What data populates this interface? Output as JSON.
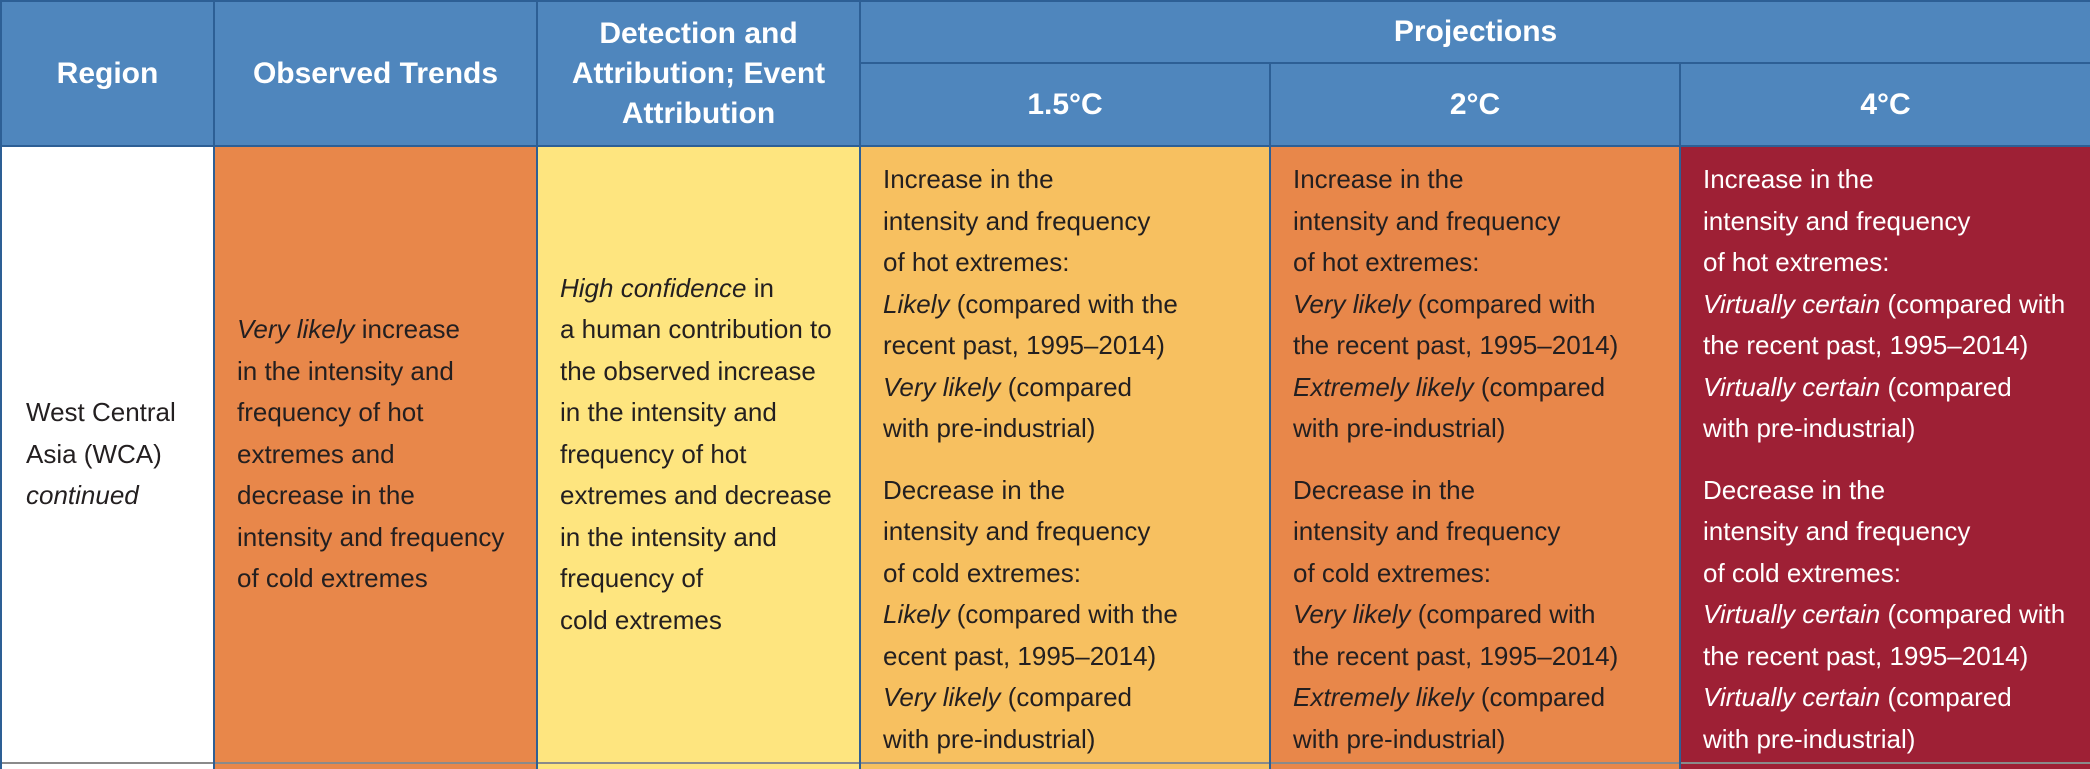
{
  "header": {
    "region": "Region",
    "observed": "Observed Trends",
    "detection": [
      "Detection and",
      "Attribution; Event",
      "Attribution"
    ],
    "projections": "Projections",
    "p15": "1.5°C",
    "p2": "2°C",
    "p4": "4°C"
  },
  "row": {
    "region": {
      "line1": "West Central",
      "line2": "Asia (WCA)",
      "line3": "continued"
    },
    "observed": {
      "l1_em": "Very likely",
      "l1_rest": " increase",
      "l2": "in the intensity and",
      "l3": "frequency of hot",
      "l4": "extremes and",
      "l5": "decrease in the",
      "l6": "intensity and frequency",
      "l7": "of cold extremes"
    },
    "detection": {
      "l1_em": "High confidence",
      "l1_rest": " in",
      "l2": "a human contribution to",
      "l3": "the observed increase",
      "l4": "in the intensity and",
      "l5": "frequency of hot",
      "l6": "extremes and decrease",
      "l7": "in the intensity and",
      "l8": "frequency of",
      "l9": "cold extremes"
    },
    "p15": {
      "h1": "Increase in the",
      "h2": "intensity and frequency",
      "h3": "of hot extremes:",
      "h4_em": "Likely",
      "h4_rest": " (compared with the",
      "h5": "recent past, 1995–2014)",
      "h6_em": "Very likely",
      "h6_rest": " (compared",
      "h7": "with pre-industrial)",
      "c1": "Decrease in the",
      "c2": "intensity and frequency",
      "c3": "of cold extremes:",
      "c4_em": "Likely",
      "c4_rest": " (compared with the",
      "c5": "ecent past, 1995–2014)",
      "c6_em": "Very likely",
      "c6_rest": " (compared",
      "c7": "with pre-industrial)"
    },
    "p2": {
      "h1": "Increase in the",
      "h2": "intensity and frequency",
      "h3": "of hot extremes:",
      "h4_em": "Very likely",
      "h4_rest": " (compared with",
      "h5": "the recent past, 1995–2014)",
      "h6_em": "Extremely likely",
      "h6_rest": " (compared",
      "h7": "with pre-industrial)",
      "c1": "Decrease in the",
      "c2": "intensity and frequency",
      "c3": "of cold extremes:",
      "c4_em": "Very likely",
      "c4_rest": " (compared with",
      "c5": "the recent past, 1995–2014)",
      "c6_em": "Extremely likely",
      "c6_rest": " (compared",
      "c7": "with pre-industrial)"
    },
    "p4": {
      "h1": "Increase in the",
      "h2": "intensity and frequency",
      "h3": "of hot extremes:",
      "h4_em": "Virtually certain",
      "h4_rest": " (compared with",
      "h5": "the recent past, 1995–2014)",
      "h6_em": "Virtually certain",
      "h6_rest": " (compared",
      "h7": "with pre-industrial)",
      "c1": "Decrease in the",
      "c2": "intensity and frequency",
      "c3": "of cold extremes:",
      "c4_em": "Virtually certain",
      "c4_rest": " (compared with",
      "c5": "the recent past, 1995–2014)",
      "c6_em": "Virtually certain",
      "c6_rest": " (compared",
      "c7": "with pre-industrial)"
    }
  },
  "colors": {
    "header_bg": "#4f86bd",
    "observed_bg": "#e8874a",
    "detection_bg": "#fee57f",
    "p15_bg": "#f7c060",
    "p2_bg": "#e8874a",
    "p4_bg": "#9e2035"
  }
}
